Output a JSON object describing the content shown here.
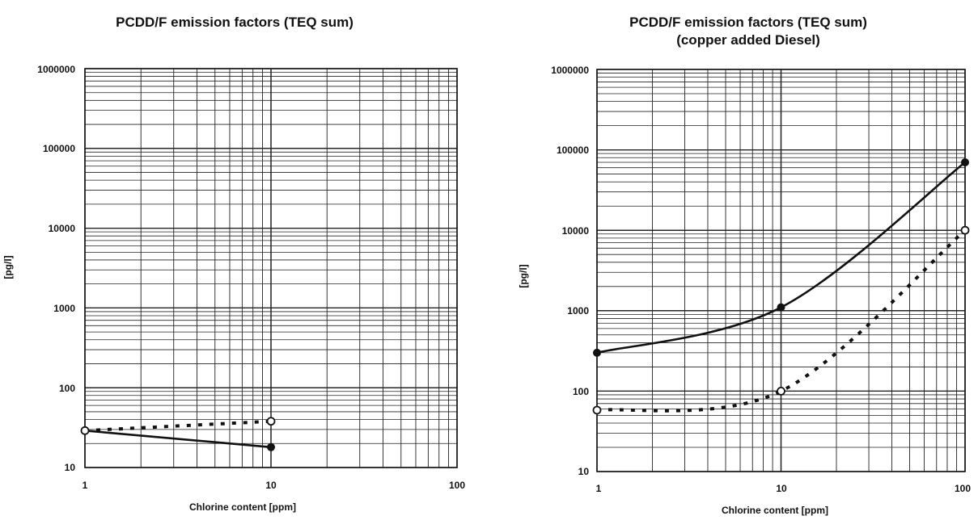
{
  "chart_data": [
    {
      "type": "line",
      "title": "PCDD/F emission factors (TEQ sum)",
      "subtitle": "",
      "xlabel": "Chlorine content [ppm]",
      "ylabel": "[pg/l]",
      "xscale": "log",
      "yscale": "log",
      "xlim": [
        1,
        100
      ],
      "ylim": [
        10,
        1000000
      ],
      "x_tick_labels": [
        "1",
        "10",
        "100"
      ],
      "y_tick_labels": [
        "10",
        "100",
        "1000",
        "10000",
        "100000",
        "1000000"
      ],
      "grid": true,
      "series": [
        {
          "style": "solid",
          "marker": "filled",
          "color": "#111111",
          "x": [
            1,
            10
          ],
          "y": [
            29,
            18
          ]
        },
        {
          "style": "dotted",
          "marker": "open",
          "color": "#111111",
          "x": [
            1,
            10
          ],
          "y": [
            29,
            38
          ]
        }
      ]
    },
    {
      "type": "line",
      "title": "PCDD/F emission factors (TEQ sum)",
      "subtitle": "(copper added Diesel)",
      "xlabel": "Chlorine content [ppm]",
      "ylabel": "[pg/l]",
      "xscale": "log",
      "yscale": "log",
      "xlim": [
        1,
        100
      ],
      "ylim": [
        10,
        1000000
      ],
      "x_tick_labels": [
        "1",
        "10",
        "100"
      ],
      "y_tick_labels": [
        "10",
        "100",
        "1000",
        "10000",
        "100000",
        "1000000"
      ],
      "grid": true,
      "series": [
        {
          "style": "solid",
          "marker": "filled",
          "color": "#111111",
          "x": [
            1,
            10,
            100
          ],
          "y": [
            300,
            1100,
            70000
          ]
        },
        {
          "style": "dotted",
          "marker": "open",
          "color": "#111111",
          "x": [
            1,
            10,
            100
          ],
          "y": [
            58,
            100,
            10000
          ]
        }
      ]
    }
  ]
}
